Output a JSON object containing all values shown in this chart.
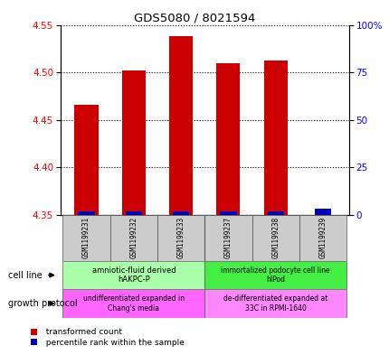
{
  "title": "GDS5080 / 8021594",
  "samples": [
    "GSM1199231",
    "GSM1199232",
    "GSM1199233",
    "GSM1199237",
    "GSM1199238",
    "GSM1199239"
  ],
  "red_values": [
    4.466,
    4.502,
    4.538,
    4.51,
    4.512,
    null
  ],
  "blue_percentile": [
    2,
    2,
    2,
    2,
    2,
    3
  ],
  "ylim_left": [
    4.35,
    4.55
  ],
  "ylim_right": [
    0,
    100
  ],
  "yticks_left": [
    4.35,
    4.4,
    4.45,
    4.5,
    4.55
  ],
  "yticks_right": [
    0,
    25,
    50,
    75,
    100
  ],
  "ytick_labels_right": [
    "0",
    "25",
    "50",
    "75",
    "100%"
  ],
  "cell_line_group1": "amniotic-fluid derived\nhAKPC-P",
  "cell_line_group2": "immortalized podocyte cell line\nhIPod",
  "growth_group1": "undifferentiated expanded in\nChang's media",
  "growth_group2": "de-differentiated expanded at\n33C in RPMI-1640",
  "cell_line_label": "cell line",
  "growth_label": "growth protocol",
  "legend_red": "  transformed count",
  "legend_blue": "  percentile rank within the sample",
  "bar_color_red": "#cc0000",
  "bar_color_blue": "#0000bb",
  "cell_line_color1": "#aaffaa",
  "cell_line_color2": "#44ee44",
  "growth_color1": "#ff66ff",
  "growth_color2": "#ff88ff",
  "baseline": 4.35
}
